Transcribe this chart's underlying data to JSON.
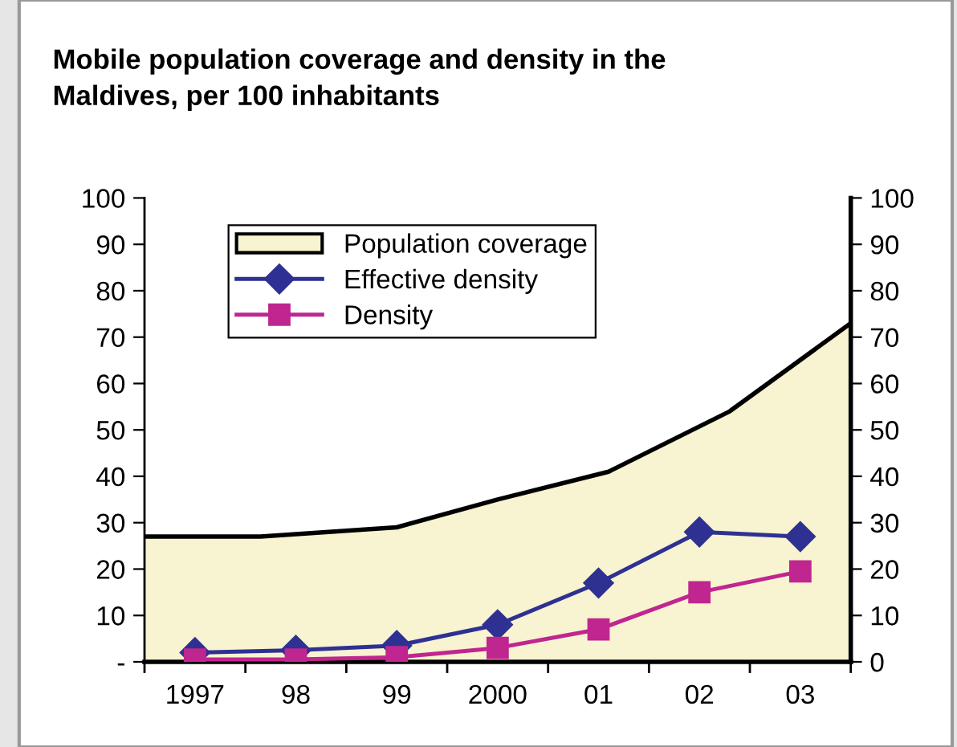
{
  "chart_data": {
    "type": "line",
    "title": "Mobile population coverage and density in the\nMaldives, per 100 inhabitants",
    "x": [
      1997,
      1998,
      1999,
      2000,
      2001,
      2002,
      2003
    ],
    "series": [
      {
        "name": "Population coverage",
        "type": "area",
        "color": "#f8f3d0",
        "x": [
          1996.5,
          1997.65,
          1999,
          2000,
          2001.1,
          2002.3,
          2003.5
        ],
        "values": [
          27,
          27,
          29,
          35,
          41,
          54,
          73
        ]
      },
      {
        "name": "Effective density",
        "color": "#2e3192",
        "marker": "diamond",
        "values": [
          2,
          2.5,
          3.5,
          8,
          17,
          28,
          27
        ]
      },
      {
        "name": "Density",
        "color": "#c0268f",
        "marker": "square",
        "values": [
          0.5,
          0.5,
          1,
          3,
          7,
          15,
          19.5
        ]
      }
    ],
    "xlim": [
      1996.5,
      2003.5
    ],
    "xticks": [
      {
        "value": 1996.5,
        "label": null
      },
      {
        "value": 1997,
        "label": "1997"
      },
      {
        "value": 1997.5,
        "label": null
      },
      {
        "value": 1998,
        "label": "98"
      },
      {
        "value": 1998.5,
        "label": null
      },
      {
        "value": 1999,
        "label": "99"
      },
      {
        "value": 1999.5,
        "label": null
      },
      {
        "value": 2000,
        "label": "2000"
      },
      {
        "value": 2000.5,
        "label": null
      },
      {
        "value": 2001,
        "label": "01"
      },
      {
        "value": 2001.5,
        "label": null
      },
      {
        "value": 2002,
        "label": "02"
      },
      {
        "value": 2002.5,
        "label": null
      },
      {
        "value": 2003,
        "label": "03"
      },
      {
        "value": 2003.5,
        "label": null
      }
    ],
    "ylim": [
      0,
      100
    ],
    "yticks": [
      {
        "value": 0,
        "label": "-"
      },
      10,
      20,
      30,
      40,
      50,
      60,
      70,
      80,
      90,
      100
    ],
    "y2lim": [
      0,
      100
    ],
    "y2ticks": [
      0,
      10,
      20,
      30,
      40,
      50,
      60,
      70,
      80,
      90,
      100
    ],
    "grid": false,
    "legend": "top left"
  }
}
